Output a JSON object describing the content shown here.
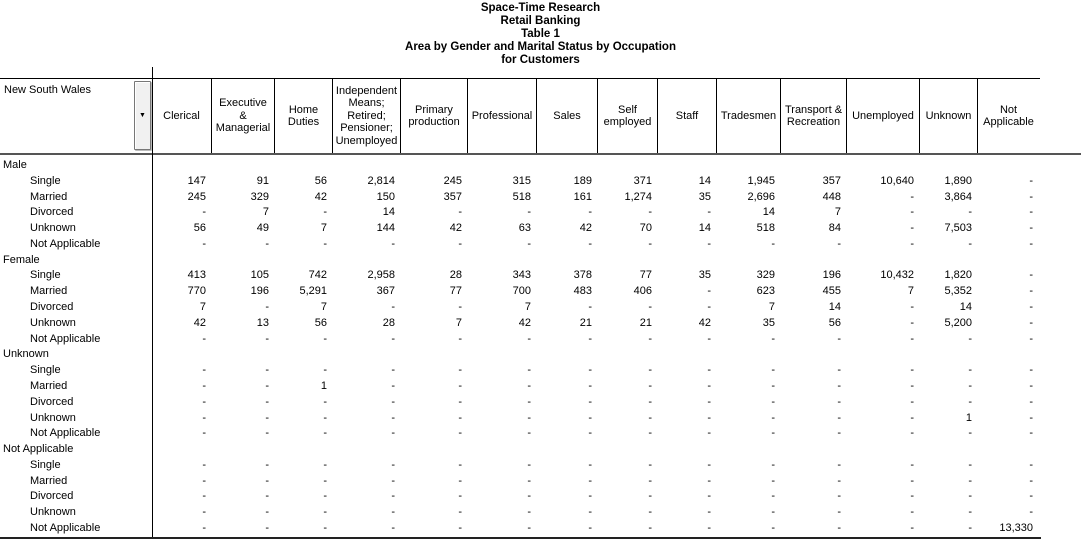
{
  "titles": [
    "Space-Time Research",
    "Retail Banking",
    "Table 1",
    "Area by Gender and Marital Status by Occupation",
    "for Customers"
  ],
  "area": {
    "label": "New South Wales",
    "dropdown_icon": "chevron-down"
  },
  "columns": [
    "Clerical",
    "Executive & Managerial",
    "Home Duties",
    "Independent Means; Retired; Pensioner; Unemployed",
    "Primary production",
    "Professional",
    "Sales",
    "Self employed",
    "Staff",
    "Tradesmen",
    "Transport & Recreation",
    "Unemployed",
    "Unknown",
    "Not Applicable"
  ],
  "groups": [
    {
      "label": "Male",
      "rows": [
        {
          "label": "Single",
          "values": [
            "147",
            "91",
            "56",
            "2,814",
            "245",
            "315",
            "189",
            "371",
            "14",
            "1,945",
            "357",
            "10,640",
            "1,890",
            "-"
          ]
        },
        {
          "label": "Married",
          "values": [
            "245",
            "329",
            "42",
            "150",
            "357",
            "518",
            "161",
            "1,274",
            "35",
            "2,696",
            "448",
            "-",
            "3,864",
            "-"
          ]
        },
        {
          "label": "Divorced",
          "values": [
            "-",
            "7",
            "-",
            "14",
            "-",
            "-",
            "-",
            "-",
            "-",
            "14",
            "7",
            "-",
            "-",
            "-"
          ]
        },
        {
          "label": "Unknown",
          "values": [
            "56",
            "49",
            "7",
            "144",
            "42",
            "63",
            "42",
            "70",
            "14",
            "518",
            "84",
            "-",
            "7,503",
            "-"
          ]
        },
        {
          "label": "Not Applicable",
          "values": [
            "-",
            "-",
            "-",
            "-",
            "-",
            "-",
            "-",
            "-",
            "-",
            "-",
            "-",
            "-",
            "-",
            "-"
          ]
        }
      ]
    },
    {
      "label": "Female",
      "rows": [
        {
          "label": "Single",
          "values": [
            "413",
            "105",
            "742",
            "2,958",
            "28",
            "343",
            "378",
            "77",
            "35",
            "329",
            "196",
            "10,432",
            "1,820",
            "-"
          ]
        },
        {
          "label": "Married",
          "values": [
            "770",
            "196",
            "5,291",
            "367",
            "77",
            "700",
            "483",
            "406",
            "-",
            "623",
            "455",
            "7",
            "5,352",
            "-"
          ]
        },
        {
          "label": "Divorced",
          "values": [
            "7",
            "-",
            "7",
            "-",
            "-",
            "7",
            "-",
            "-",
            "-",
            "7",
            "14",
            "-",
            "14",
            "-"
          ]
        },
        {
          "label": "Unknown",
          "values": [
            "42",
            "13",
            "56",
            "28",
            "7",
            "42",
            "21",
            "21",
            "42",
            "35",
            "56",
            "-",
            "5,200",
            "-"
          ]
        },
        {
          "label": "Not Applicable",
          "values": [
            "-",
            "-",
            "-",
            "-",
            "-",
            "-",
            "-",
            "-",
            "-",
            "-",
            "-",
            "-",
            "-",
            "-"
          ]
        }
      ]
    },
    {
      "label": "Unknown",
      "rows": [
        {
          "label": "Single",
          "values": [
            "-",
            "-",
            "-",
            "-",
            "-",
            "-",
            "-",
            "-",
            "-",
            "-",
            "-",
            "-",
            "-",
            "-"
          ]
        },
        {
          "label": "Married",
          "values": [
            "-",
            "-",
            "1",
            "-",
            "-",
            "-",
            "-",
            "-",
            "-",
            "-",
            "-",
            "-",
            "-",
            "-"
          ]
        },
        {
          "label": "Divorced",
          "values": [
            "-",
            "-",
            "-",
            "-",
            "-",
            "-",
            "-",
            "-",
            "-",
            "-",
            "-",
            "-",
            "-",
            "-"
          ]
        },
        {
          "label": "Unknown",
          "values": [
            "-",
            "-",
            "-",
            "-",
            "-",
            "-",
            "-",
            "-",
            "-",
            "-",
            "-",
            "-",
            "1",
            "-"
          ]
        },
        {
          "label": "Not Applicable",
          "values": [
            "-",
            "-",
            "-",
            "-",
            "-",
            "-",
            "-",
            "-",
            "-",
            "-",
            "-",
            "-",
            "-",
            "-"
          ]
        }
      ]
    },
    {
      "label": "Not Applicable",
      "rows": [
        {
          "label": "Single",
          "values": [
            "-",
            "-",
            "-",
            "-",
            "-",
            "-",
            "-",
            "-",
            "-",
            "-",
            "-",
            "-",
            "-",
            "-"
          ]
        },
        {
          "label": "Married",
          "values": [
            "-",
            "-",
            "-",
            "-",
            "-",
            "-",
            "-",
            "-",
            "-",
            "-",
            "-",
            "-",
            "-",
            "-"
          ]
        },
        {
          "label": "Divorced",
          "values": [
            "-",
            "-",
            "-",
            "-",
            "-",
            "-",
            "-",
            "-",
            "-",
            "-",
            "-",
            "-",
            "-",
            "-"
          ]
        },
        {
          "label": "Unknown",
          "values": [
            "-",
            "-",
            "-",
            "-",
            "-",
            "-",
            "-",
            "-",
            "-",
            "-",
            "-",
            "-",
            "-",
            "-"
          ]
        },
        {
          "label": "Not Applicable",
          "values": [
            "-",
            "-",
            "-",
            "-",
            "-",
            "-",
            "-",
            "-",
            "-",
            "-",
            "-",
            "-",
            "-",
            "13,330"
          ]
        }
      ]
    }
  ],
  "colors": {
    "text": "#000000",
    "grid_line": "#000000",
    "header_rule": "#555555",
    "button_face": "#f1f1f1"
  }
}
